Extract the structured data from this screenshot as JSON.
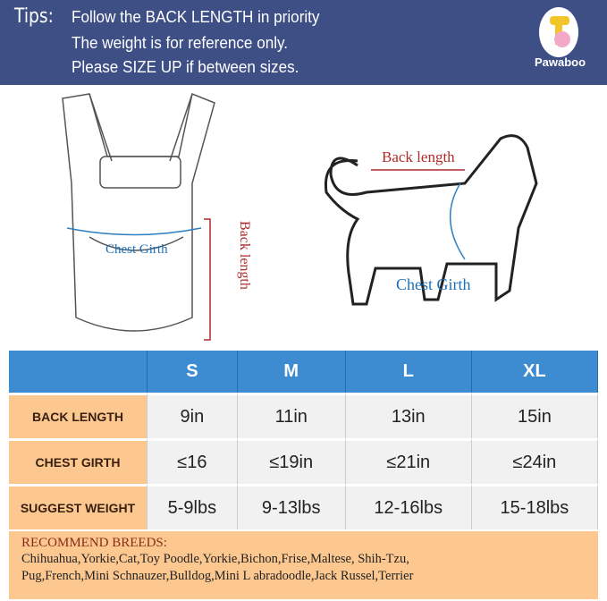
{
  "banner": {
    "tips_label": "Tips:",
    "lines": [
      "Follow the BACK LENGTH in priority",
      "The weight is for reference only.",
      "Please SIZE UP if between sizes."
    ],
    "logo_text": "Pawaboo",
    "color": "#3e4f86"
  },
  "illustration": {
    "carrier_chest_label": "Chest Girth",
    "carrier_back_label": "Back length",
    "dog_back_label": "Back length",
    "dog_chest_label": "Chest Girth"
  },
  "table": {
    "headers": [
      "",
      "S",
      "M",
      "L",
      "XL"
    ],
    "rows": [
      {
        "label": "BACK LENGTH",
        "values": [
          "9in",
          "11in",
          "13in",
          "15in"
        ]
      },
      {
        "label": "CHEST GIRTH",
        "values": [
          "≤16",
          "≤19in",
          "≤21in",
          "≤24in"
        ]
      },
      {
        "label": "SUGGEST WEIGHT",
        "values": [
          "5-9lbs",
          "9-13lbs",
          "12-16lbs",
          "15-18lbs"
        ]
      }
    ],
    "header_color": "#3d8bd0",
    "label_color": "#fcc890"
  },
  "breeds": {
    "title": "RECOMMEND BREEDS:",
    "lines": [
      "Chihuahua,Yorkie,Cat,Toy Poodle,Yorkie,Bichon,Frise,Maltese, Shih-Tzu,",
      "Pug,French,Mini Schnauzer,Bulldog,Mini L abradoodle,Jack Russel,Terrier"
    ]
  }
}
